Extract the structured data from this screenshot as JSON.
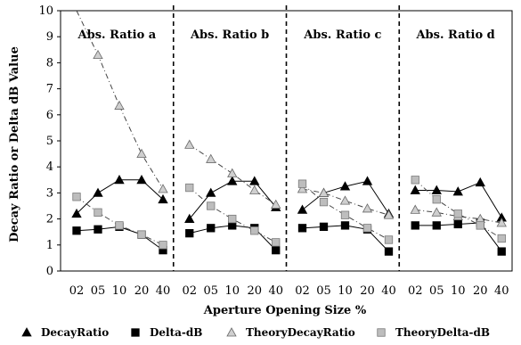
{
  "chart_data": {
    "type": "line",
    "xlabel": "Aperture Opening Size %",
    "ylabel": "Decay Ratio or Delta dB Value",
    "ylim": [
      0,
      10
    ],
    "yticks": [
      "0",
      "1",
      "2",
      "3",
      "4",
      "5",
      "6",
      "7",
      "8",
      "9",
      "10"
    ],
    "categories": [
      "02",
      "05",
      "10",
      "20",
      "40"
    ],
    "grid": false,
    "legend_position": "bottom",
    "panels": [
      {
        "title": "Abs. Ratio a",
        "series": [
          {
            "name": "DecayRatio",
            "values": [
              2.2,
              3.0,
              3.5,
              3.5,
              2.75
            ]
          },
          {
            "name": "Delta-dB",
            "values": [
              1.55,
              1.6,
              1.7,
              1.4,
              0.8
            ]
          },
          {
            "name": "TheoryDecayRatio",
            "values": [
              10.0,
              8.3,
              6.35,
              4.5,
              3.15
            ],
            "curve": [
              10.0
            ]
          },
          {
            "name": "TheoryDelta-dB",
            "values": [
              2.85,
              2.25,
              1.75,
              1.4,
              1.0
            ]
          }
        ]
      },
      {
        "title": "Abs. Ratio b",
        "series": [
          {
            "name": "DecayRatio",
            "values": [
              2.0,
              3.0,
              3.45,
              3.45,
              2.45
            ]
          },
          {
            "name": "Delta-dB",
            "values": [
              1.45,
              1.65,
              1.75,
              1.65,
              0.8
            ]
          },
          {
            "name": "TheoryDecayRatio",
            "values": [
              4.85,
              4.3,
              3.75,
              3.1,
              2.55
            ]
          },
          {
            "name": "TheoryDelta-dB",
            "values": [
              3.2,
              2.5,
              2.0,
              1.55,
              1.1
            ]
          }
        ]
      },
      {
        "title": "Abs. Ratio c",
        "series": [
          {
            "name": "DecayRatio",
            "values": [
              2.35,
              3.0,
              3.25,
              3.45,
              2.2
            ]
          },
          {
            "name": "Delta-dB",
            "values": [
              1.65,
              1.7,
              1.75,
              1.6,
              0.75
            ]
          },
          {
            "name": "TheoryDecayRatio",
            "values": [
              3.15,
              3.0,
              2.7,
              2.4,
              2.15
            ]
          },
          {
            "name": "TheoryDelta-dB",
            "values": [
              3.35,
              2.65,
              2.15,
              1.65,
              1.2
            ]
          }
        ]
      },
      {
        "title": "Abs. Ratio d",
        "series": [
          {
            "name": "DecayRatio",
            "values": [
              3.1,
              3.1,
              3.05,
              3.4,
              2.05
            ]
          },
          {
            "name": "Delta-dB",
            "values": [
              1.75,
              1.75,
              1.8,
              1.85,
              0.75
            ]
          },
          {
            "name": "TheoryDecayRatio",
            "values": [
              2.35,
              2.25,
              2.1,
              2.0,
              1.85
            ]
          },
          {
            "name": "TheoryDelta-dB",
            "values": [
              3.5,
              2.75,
              2.2,
              1.75,
              1.25
            ]
          }
        ]
      }
    ],
    "legend": [
      "DecayRatio",
      "Delta-dB",
      "TheoryDecayRatio",
      "TheoryDelta-dB"
    ]
  }
}
